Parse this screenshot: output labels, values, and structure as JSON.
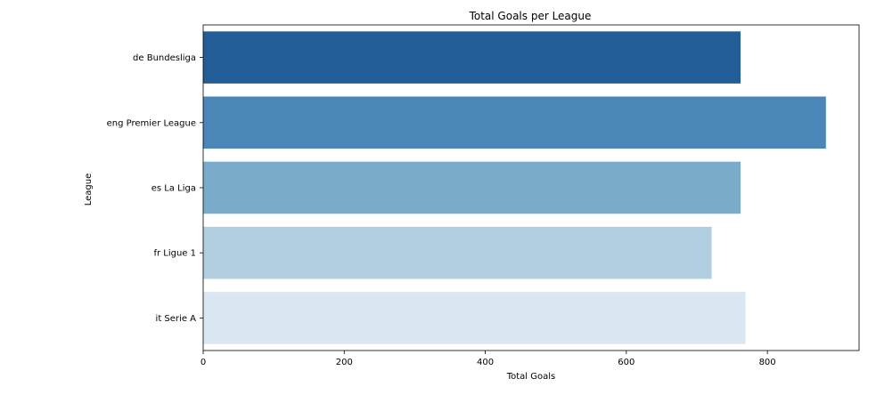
{
  "chart_data": {
    "type": "bar",
    "orientation": "horizontal",
    "title": "Total Goals per League",
    "xlabel": "Total Goals",
    "ylabel": "League",
    "categories": [
      "de Bundesliga",
      "eng Premier League",
      "es La Liga",
      "fr Ligue 1",
      "it Serie A"
    ],
    "values": [
      762,
      883,
      762,
      721,
      769
    ],
    "colors": [
      "#235d97",
      "#4a86b7",
      "#7babcb",
      "#b2cfe1",
      "#dae6f2"
    ],
    "xlim": [
      0,
      930
    ],
    "xticks": [
      0,
      200,
      400,
      600,
      800
    ],
    "grid": false,
    "legend": "none"
  }
}
